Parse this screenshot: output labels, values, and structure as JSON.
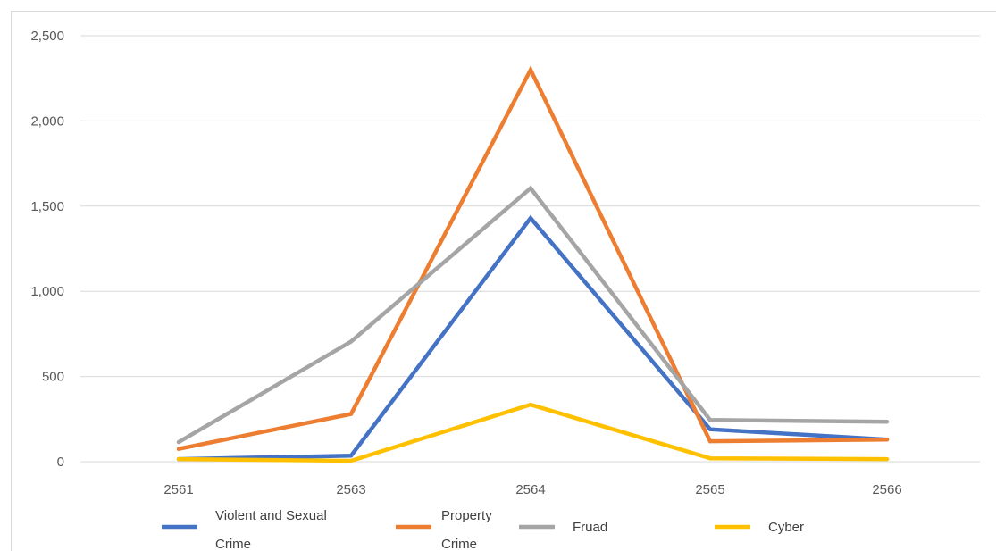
{
  "chart_data": {
    "type": "line",
    "title": "",
    "xlabel": "",
    "ylabel": "",
    "categories": [
      "2561",
      "2563",
      "2564",
      "2565",
      "2566"
    ],
    "ylim": [
      0,
      2500
    ],
    "yticks": [
      0,
      500,
      1000,
      1500,
      2000,
      2500
    ],
    "ytick_labels": [
      "0",
      "500",
      "1,000",
      "1,500",
      "2,000",
      "2,500"
    ],
    "grid": true,
    "legend_position": "bottom",
    "series": [
      {
        "name": "Violent and Sexual Crime",
        "color": "#4472c4",
        "values": [
          15,
          35,
          1430,
          190,
          130
        ]
      },
      {
        "name": "Property Crime",
        "color": "#ed7d31",
        "values": [
          75,
          280,
          2300,
          120,
          130
        ]
      },
      {
        "name": "Fruad",
        "color": "#a5a5a5",
        "values": [
          115,
          705,
          1605,
          245,
          235
        ]
      },
      {
        "name": "Cyber",
        "color": "#ffc000",
        "values": [
          15,
          5,
          335,
          20,
          15
        ]
      }
    ]
  },
  "legend": {
    "items": [
      {
        "line1": "Violent and Sexual",
        "line2": "Crime"
      },
      {
        "line1": "Property",
        "line2": "Crime"
      },
      {
        "line1": "Fruad",
        "line2": ""
      },
      {
        "line1": "Cyber",
        "line2": ""
      }
    ]
  }
}
